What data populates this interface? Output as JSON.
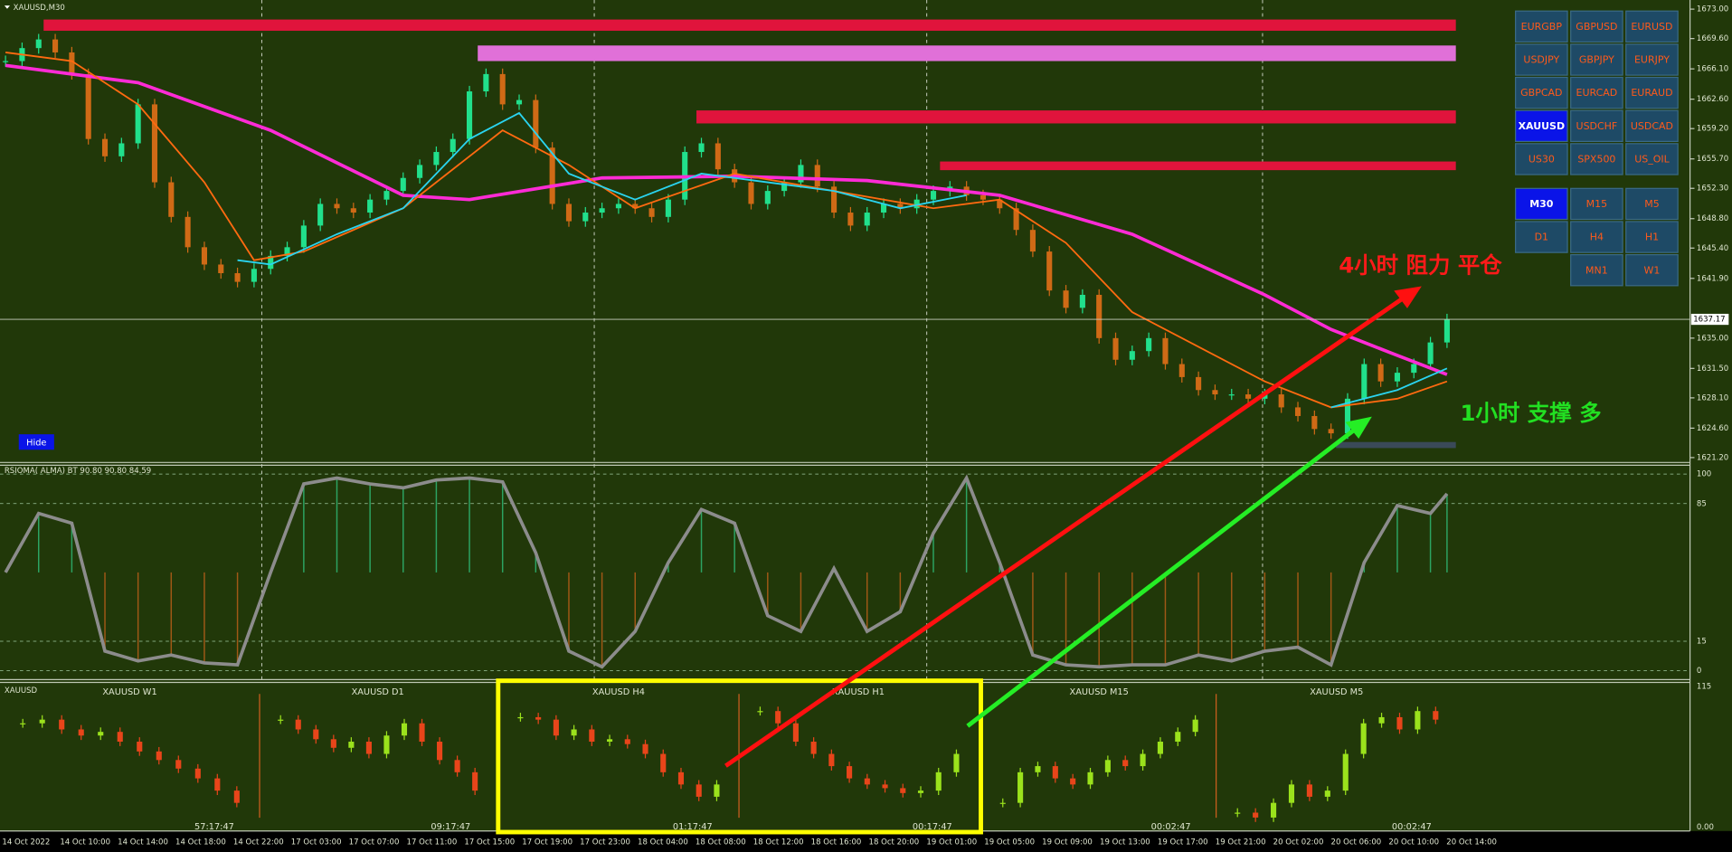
{
  "window": {
    "symbol_label": "XAUUSD,M30",
    "hide_button": "Hide"
  },
  "main_chart": {
    "ylim": [
      1620.7,
      1673.8
    ],
    "yticks": [
      {
        "value": 1673,
        "label": "1673.00"
      },
      {
        "value": 1669.6,
        "label": "1669.60"
      },
      {
        "value": 1666.1,
        "label": "1666.10"
      },
      {
        "value": 1662.6,
        "label": "1662.60"
      },
      {
        "value": 1659.2,
        "label": "1659.20"
      },
      {
        "value": 1655.7,
        "label": "1655.70"
      },
      {
        "value": 1652.3,
        "label": "1652.30"
      },
      {
        "value": 1648.8,
        "label": "1648.80"
      },
      {
        "value": 1645.4,
        "label": "1645.40"
      },
      {
        "value": 1641.9,
        "label": "1641.90"
      },
      {
        "value": 1635,
        "label": "1635.00"
      },
      {
        "value": 1631.5,
        "label": "1631.50"
      },
      {
        "value": 1628.1,
        "label": "1628.10"
      },
      {
        "value": 1624.6,
        "label": "1624.60"
      },
      {
        "value": 1621.2,
        "label": "1621.20"
      }
    ],
    "current_price": 1637.17,
    "closes": [
      1667,
      1668.5,
      1669.5,
      1668,
      1665.5,
      1658,
      1656,
      1657.5,
      1662,
      1653,
      1649,
      1645.5,
      1643.5,
      1642.5,
      1641.5,
      1643,
      1644.5,
      1645.5,
      1648,
      1650.5,
      1650,
      1649.5,
      1651,
      1652,
      1653.5,
      1655,
      1656.5,
      1658,
      1663.5,
      1665.5,
      1662,
      1662.5,
      1657,
      1650.5,
      1648.5,
      1649.5,
      1650,
      1650.5,
      1650,
      1649,
      1651,
      1656.5,
      1657.5,
      1654.5,
      1653,
      1650.5,
      1652,
      1653,
      1655,
      1652.5,
      1649.5,
      1648,
      1649.5,
      1650.5,
      1650,
      1651,
      1652,
      1652.5,
      1651.5,
      1651,
      1650,
      1647.5,
      1645,
      1640.5,
      1638.5,
      1640,
      1635,
      1632.5,
      1633.5,
      1635,
      1632,
      1630.5,
      1629,
      1628.5,
      1628.5,
      1628,
      1628.5,
      1627,
      1626,
      1624.5,
      1624,
      1628,
      1632,
      1630,
      1631,
      1632,
      1634.5,
      1637.17
    ],
    "up_color": "#21e08c",
    "down_color": "#cf6a16",
    "ma_lines": [
      {
        "color": "#ff2bd6",
        "width": 3,
        "x": [
          0,
          8,
          16,
          24,
          28,
          36,
          44,
          52,
          60,
          68,
          76,
          80,
          84,
          87
        ],
        "values": [
          1666.5,
          1664.5,
          1659,
          1651.5,
          1651,
          1653.5,
          1653.7,
          1653.2,
          1651.5,
          1647,
          1640,
          1636,
          1633,
          1630.8
        ]
      },
      {
        "color": "#ff6a10",
        "width": 1.5,
        "x": [
          0,
          4,
          8,
          12,
          15,
          18,
          24,
          30,
          34,
          38,
          44,
          50,
          56,
          60,
          64,
          68,
          72,
          76,
          80,
          84,
          87
        ],
        "values": [
          1668,
          1667,
          1662,
          1653,
          1644,
          1645,
          1650,
          1659,
          1655,
          1650,
          1654,
          1652,
          1650,
          1651,
          1646,
          1638,
          1634,
          1630,
          1627,
          1628,
          1630
        ]
      },
      {
        "color": "#2ad4f0",
        "width": 1.5,
        "x": [
          14,
          16,
          20,
          24,
          28,
          31,
          34,
          38,
          42,
          46,
          50,
          54,
          58,
          62,
          80,
          84,
          87
        ],
        "values": [
          1644,
          1643.5,
          1647,
          1650,
          1658,
          1661,
          1654,
          1651,
          1654,
          1653,
          1652,
          1650,
          1651.5,
          null,
          1627,
          1629,
          1631.5
        ]
      }
    ],
    "zones": [
      {
        "top": 1671.8,
        "bottom": 1670.5,
        "start": 2.3,
        "color": "#e0143c"
      },
      {
        "top": 1668.8,
        "bottom": 1667,
        "start": 28.5,
        "color": "#e070d8"
      },
      {
        "top": 1661.3,
        "bottom": 1659.8,
        "start": 41.7,
        "color": "#e0143c"
      },
      {
        "top": 1655.4,
        "bottom": 1654.4,
        "start": 56.4,
        "color": "#e0143c"
      },
      {
        "top": 1623,
        "bottom": 1622.3,
        "start": 80.3,
        "color": "#3a4a58"
      }
    ],
    "annotations": {
      "resistance": "4小时 阻力 平仓",
      "support": "1小时 支撑 多"
    }
  },
  "rsi_panel": {
    "title": "RSIOMA( ALMA) BT 90.80 90.80 84.59",
    "ylim": [
      -4.5,
      104.5
    ],
    "levels": [
      100,
      85,
      15,
      0
    ],
    "x": [
      0,
      2,
      4,
      6,
      8,
      10,
      12,
      14,
      16,
      18,
      20,
      22,
      24,
      26,
      28,
      30,
      32,
      34,
      36,
      38,
      40,
      42,
      44,
      46,
      48,
      50,
      52,
      54,
      56,
      58,
      60,
      62,
      64,
      66,
      68,
      70,
      72,
      74,
      76,
      78,
      80,
      82,
      84,
      86,
      87
    ],
    "values": [
      50,
      80,
      75,
      10,
      5,
      8,
      4,
      3,
      50,
      95,
      98,
      95,
      93,
      97,
      98,
      96,
      60,
      10,
      2,
      20,
      55,
      82,
      75,
      28,
      20,
      52,
      20,
      30,
      70,
      98,
      55,
      8,
      3,
      2,
      3,
      3,
      8,
      5,
      10,
      12,
      3,
      55,
      84,
      80,
      90
    ]
  },
  "mini_charts": {
    "label": "XAUUSD",
    "ylim": [
      -3,
      118
    ],
    "axis": [
      {
        "value": 115,
        "label": "115"
      },
      {
        "value": 0,
        "label": "0.00"
      }
    ],
    "panels": [
      {
        "title": "XAUUSD W1",
        "timer": "57:17:47",
        "closes": [
          85,
          88,
          80,
          75,
          78,
          70,
          62,
          55,
          48,
          40,
          30,
          20
        ]
      },
      {
        "title": "XAUUSD D1",
        "timer": "09:17:47",
        "closes": [
          88,
          80,
          72,
          65,
          70,
          60,
          75,
          85,
          70,
          55,
          45,
          30
        ]
      },
      {
        "title": "XAUUSD H4",
        "timer": "01:17:47",
        "closes": [
          90,
          88,
          75,
          80,
          70,
          72,
          68,
          60,
          45,
          35,
          25,
          35
        ]
      },
      {
        "title": "XAUUSD H1",
        "timer": "00:17:47",
        "closes": [
          95,
          85,
          70,
          60,
          50,
          40,
          35,
          32,
          28,
          30,
          45,
          60
        ]
      },
      {
        "title": "XAUUSD M15",
        "timer": "00:02:47",
        "closes": [
          20,
          45,
          50,
          40,
          35,
          45,
          55,
          50,
          60,
          70,
          78,
          88
        ]
      },
      {
        "title": "XAUUSD M5",
        "timer": "00:02:47",
        "closes": [
          12,
          8,
          20,
          35,
          25,
          30,
          60,
          85,
          90,
          80,
          95,
          88
        ]
      }
    ]
  },
  "time_labels": [
    "14 Oct 2022",
    "14 Oct 10:00",
    "14 Oct 14:00",
    "14 Oct 18:00",
    "14 Oct 22:00",
    "17 Oct 03:00",
    "17 Oct 07:00",
    "17 Oct 11:00",
    "17 Oct 15:00",
    "17 Oct 19:00",
    "17 Oct 23:00",
    "18 Oct 04:00",
    "18 Oct 08:00",
    "18 Oct 12:00",
    "18 Oct 16:00",
    "18 Oct 20:00",
    "19 Oct 01:00",
    "19 Oct 05:00",
    "19 Oct 09:00",
    "19 Oct 13:00",
    "19 Oct 17:00",
    "19 Oct 21:00",
    "20 Oct 02:00",
    "20 Oct 06:00",
    "20 Oct 10:00",
    "20 Oct 14:00"
  ],
  "symbols": [
    {
      "label": "EURGBP"
    },
    {
      "label": "GBPUSD"
    },
    {
      "label": "EURUSD"
    },
    {
      "label": "USDJPY"
    },
    {
      "label": "GBPJPY"
    },
    {
      "label": "EURJPY"
    },
    {
      "label": "GBPCAD"
    },
    {
      "label": "EURCAD"
    },
    {
      "label": "EURAUD"
    },
    {
      "label": "XAUUSD",
      "active": true
    },
    {
      "label": "USDCHF"
    },
    {
      "label": "USDCAD"
    },
    {
      "label": "US30"
    },
    {
      "label": "SPX500"
    },
    {
      "label": "US_OIL"
    }
  ],
  "timeframes": [
    {
      "label": "M30",
      "active": true
    },
    {
      "label": "M15"
    },
    {
      "label": "M5"
    },
    {
      "label": "D1"
    },
    {
      "label": "H4"
    },
    {
      "label": "H1"
    },
    {
      "label": "MN1"
    },
    {
      "label": "W1"
    }
  ]
}
